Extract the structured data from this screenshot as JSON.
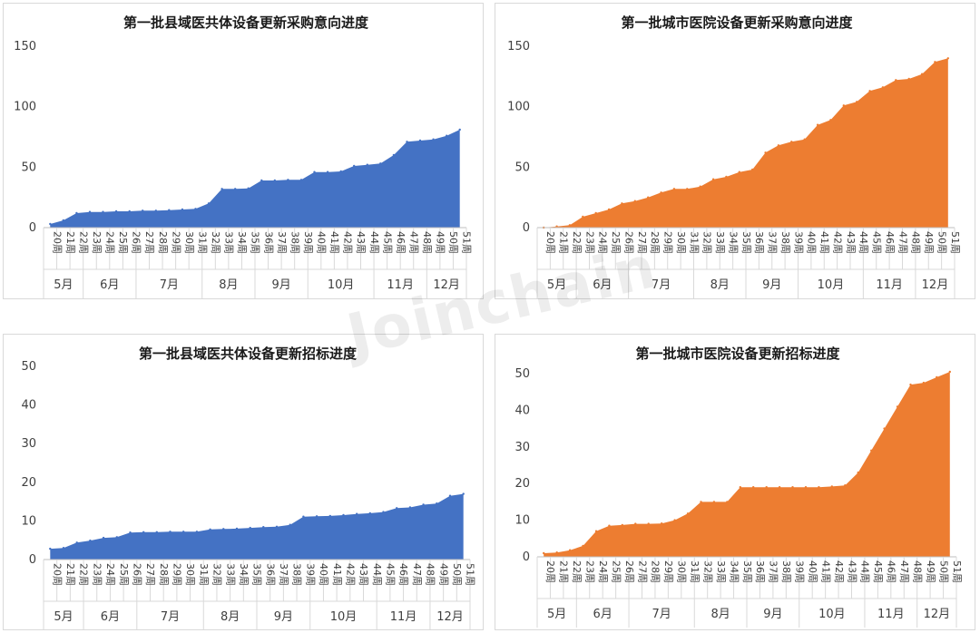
{
  "watermark": "Joinchain",
  "weeks": [
    "20周",
    "21周",
    "22周",
    "23周",
    "24周",
    "25周",
    "26周",
    "27周",
    "28周",
    "29周",
    "30周",
    "31周",
    "32周",
    "33周",
    "34周",
    "35周",
    "36周",
    "37周",
    "38周",
    "39周",
    "40周",
    "41周",
    "42周",
    "43周",
    "44周",
    "45周",
    "46周",
    "47周",
    "48周",
    "49周",
    "50周",
    "51周"
  ],
  "months": [
    {
      "label": "5月",
      "count": 3
    },
    {
      "label": "6月",
      "count": 4
    },
    {
      "label": "7月",
      "count": 5
    },
    {
      "label": "8月",
      "count": 4
    },
    {
      "label": "9月",
      "count": 4
    },
    {
      "label": "10月",
      "count": 5
    },
    {
      "label": "11月",
      "count": 4
    },
    {
      "label": "12月",
      "count": 3
    }
  ],
  "chart_data": [
    {
      "type": "area",
      "title": "第一批县域医共体设备更新采购意向进度",
      "color": "#4472C4",
      "ylim": [
        0,
        150
      ],
      "yticks": [
        0,
        50,
        100,
        150
      ],
      "values": [
        3,
        6,
        12,
        13,
        13,
        13.5,
        13.5,
        14,
        14,
        14.5,
        15,
        15.5,
        20,
        32,
        32,
        32.5,
        39,
        39,
        39.5,
        39.5,
        46,
        46,
        46.5,
        51,
        52,
        53,
        60,
        71,
        72,
        73,
        76,
        81
      ]
    },
    {
      "type": "area",
      "title": "第一批城市医院设备更新采购意向进度",
      "color": "#ED7D31",
      "ylim": [
        0,
        150
      ],
      "yticks": [
        0,
        50,
        100,
        150
      ],
      "values": [
        0,
        1,
        2,
        9,
        12,
        15,
        20,
        22,
        25,
        29,
        32,
        32,
        34,
        40,
        42,
        46,
        48,
        62,
        68,
        71,
        73,
        85,
        89,
        101,
        104,
        113,
        116,
        122,
        123,
        127,
        137,
        140
      ]
    },
    {
      "type": "area",
      "title": "第一批县域医共体设备更新招标进度",
      "color": "#4472C4",
      "ylim": [
        0,
        50
      ],
      "yticks": [
        0,
        10,
        20,
        30,
        40,
        50
      ],
      "values": [
        2.8,
        3,
        4.4,
        4.9,
        5.6,
        5.8,
        7,
        7.1,
        7.1,
        7.2,
        7.2,
        7.2,
        7.8,
        7.9,
        8,
        8.2,
        8.4,
        8.5,
        9,
        11.1,
        11.2,
        11.3,
        11.5,
        11.8,
        12,
        12.3,
        13.3,
        13.5,
        14.2,
        14.5,
        16.5,
        17
      ]
    },
    {
      "type": "area",
      "title": "第一批城市医院设备更新招标进度",
      "color": "#ED7D31",
      "ylim": [
        0,
        50
      ],
      "yticks": [
        0,
        10,
        20,
        30,
        40,
        50
      ],
      "values": [
        1,
        1.2,
        1.8,
        3,
        7,
        8.5,
        8.7,
        9,
        9,
        9.1,
        10,
        11.8,
        15,
        15,
        15,
        19,
        19,
        19,
        19,
        19,
        19,
        19,
        19.2,
        19.5,
        23,
        29,
        35,
        41,
        47,
        47.5,
        49,
        50.5
      ]
    }
  ]
}
